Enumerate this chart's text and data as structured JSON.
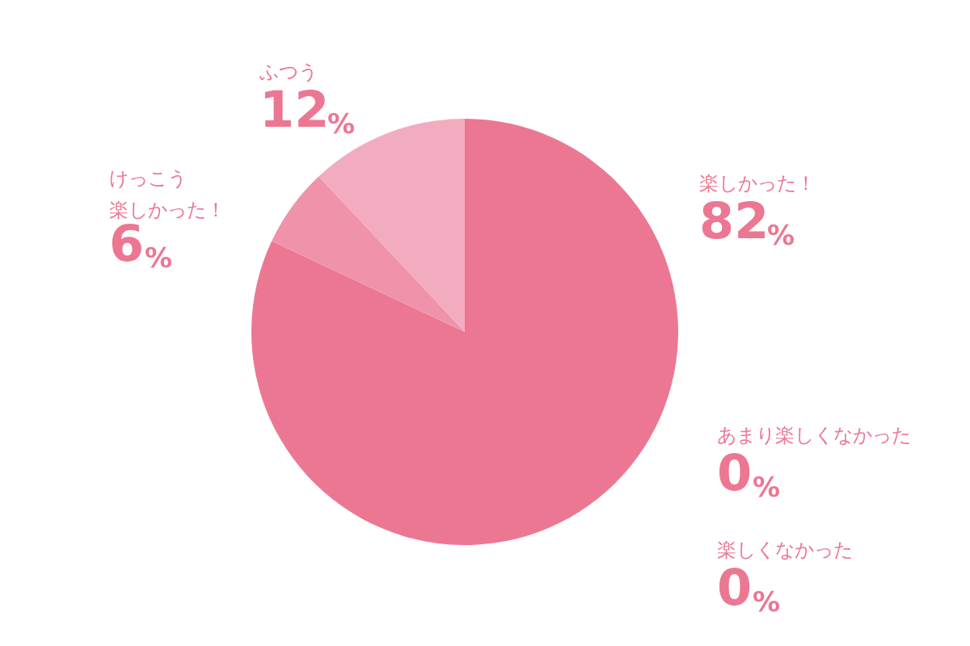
{
  "chart_data": {
    "type": "pie",
    "categories": [
      "楽しかった！",
      "あまり楽しくなかった",
      "楽しくなかった",
      "けっこう楽しかった！",
      "ふつう"
    ],
    "values": [
      82,
      0,
      0,
      6,
      12
    ],
    "colors": [
      "#ec7793",
      "#e5607f",
      "#d94d6e",
      "#f092aa",
      "#f3abc0"
    ],
    "value_labels": [
      "82%",
      "0%",
      "0%",
      "6%",
      "12%"
    ]
  }
}
